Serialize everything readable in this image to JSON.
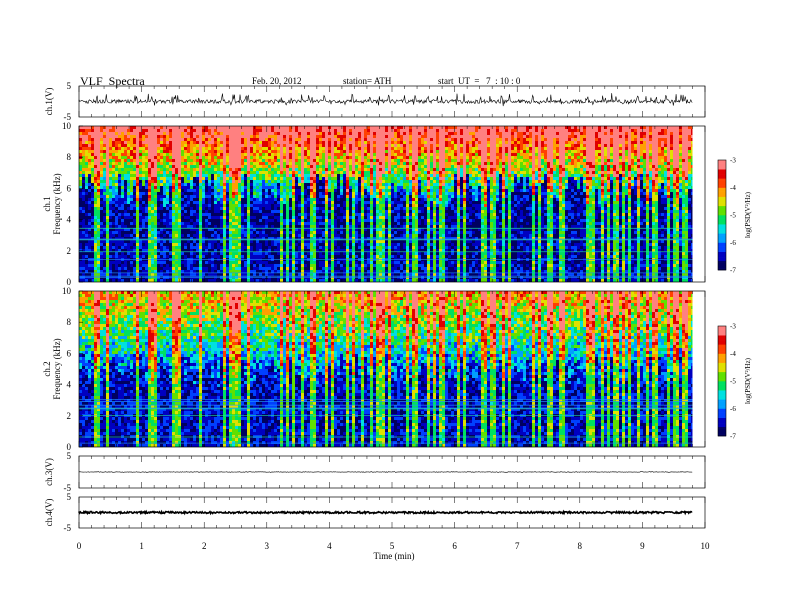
{
  "header": {
    "title": "VLF  Spectra",
    "date": "Feb. 20, 2012",
    "station": "station= ATH",
    "start": "start  UT  =   7  : 10 : 0"
  },
  "colors": {
    "colormap": [
      "#000060",
      "#0000c0",
      "#0040ff",
      "#00a0ff",
      "#00e0e0",
      "#00e060",
      "#60e000",
      "#e0e000",
      "#ffa000",
      "#ff4000",
      "#e00000",
      "#ff8080",
      "#ffffff"
    ],
    "trace": "#000000"
  },
  "chart_data": [
    {
      "type": "line",
      "name": "ch.1 waveform",
      "ylabel": "ch.1(V)",
      "ylim": [
        -5,
        5
      ],
      "yticks": [
        "5",
        "-5"
      ],
      "x_range_min": [
        0,
        9.8
      ],
      "baseline_v": 0,
      "noise_amplitude_v": 0.6,
      "spike_amplitude_v": 3.5
    },
    {
      "type": "heatmap",
      "name": "ch.1 spectrogram",
      "ylabel_lines": [
        "ch.1",
        "Frequency  (kHz)"
      ],
      "ylim_khz": [
        0,
        10
      ],
      "yticks": [
        "0",
        "2",
        "4",
        "6",
        "8",
        "10"
      ],
      "x_range_min": [
        0,
        9.8
      ],
      "colorbar": {
        "label": "log(PSD(V²/Hz)",
        "range": [
          -7,
          -3
        ],
        "ticks": [
          "-3",
          "-4",
          "-5",
          "-6",
          "-7"
        ]
      },
      "band_boundary_khz": 6.0,
      "upper_band_levels": [
        -5.5,
        -3.2
      ],
      "lower_band_level": -6.6
    },
    {
      "type": "heatmap",
      "name": "ch.2 spectrogram",
      "ylabel_lines": [
        "ch.2",
        "Frequency  (kHz)"
      ],
      "ylim_khz": [
        0,
        10
      ],
      "yticks": [
        "0",
        "2",
        "4",
        "6",
        "8",
        "10"
      ],
      "x_range_min": [
        0,
        9.8
      ],
      "colorbar": {
        "label": "log(PSD(V²/Hz)",
        "range": [
          -7,
          -3
        ],
        "ticks": [
          "-3",
          "-4",
          "-5",
          "-6",
          "-7"
        ]
      },
      "band_boundary_khz": 5.0,
      "upper_band_levels": [
        -6.0,
        -4.2
      ],
      "lower_band_level": -6.5
    },
    {
      "type": "line",
      "name": "ch.3 waveform",
      "ylabel": "ch.3(V)",
      "ylim": [
        -5,
        5
      ],
      "yticks": [
        "5",
        "-5"
      ],
      "x_range_min": [
        0,
        9.8
      ],
      "baseline_v": 0,
      "noise_amplitude_v": 0.1
    },
    {
      "type": "line",
      "name": "ch.4 waveform",
      "ylabel": "ch.4(V)",
      "ylim": [
        -5,
        5
      ],
      "yticks": [
        "5",
        "-5"
      ],
      "x_range_min": [
        0,
        9.8
      ],
      "baseline_v": 0,
      "noise_amplitude_v": 0.3
    }
  ],
  "xaxis": {
    "label": "Time  (min)",
    "ticks": [
      "0",
      "1",
      "2",
      "3",
      "4",
      "5",
      "6",
      "7",
      "8",
      "9",
      "10"
    ],
    "range": [
      0,
      10
    ]
  }
}
